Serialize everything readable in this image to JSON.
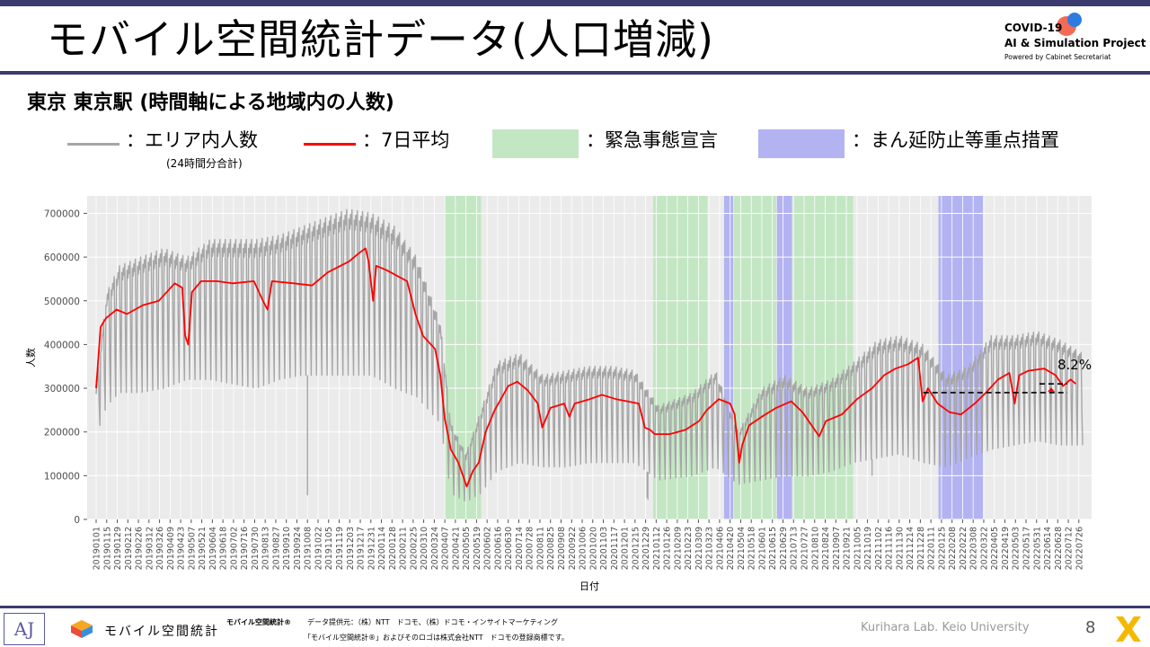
{
  "page": {
    "title": "モバイル空間統計データ(人口増減)",
    "subtitle": "東京 東京駅 (時間軸による地域内の人数)",
    "logo": {
      "line1": "COVID-19",
      "line2": "AI & Simulation Project",
      "line3": "Powered by Cabinet Secretariat"
    },
    "legend": {
      "gray_label": "：エリア内人数",
      "gray_note": "(24時間分合計)",
      "red_label": "：7日平均",
      "green_label": "：緊急事態宣言",
      "blue_label": "：まん延防止等重点措置"
    },
    "footer": {
      "aj": "AJ",
      "mobile": "モバイル空間統計",
      "brand_small": "モバイル空間統計®",
      "provider": "データ提供元：（株）NTT　ドコモ、（株）ドコモ・インサイトマーケティング",
      "trademark": "「モバイル空間統計®」およびそのロゴは株式会社NTT　ドコモの登録商標です。",
      "lab": "Kurihara Lab. Keio University",
      "page_number": "8"
    },
    "colors": {
      "accent": "#3b3b6e",
      "gray_series": "#a6a6a6",
      "red_series": "#ff0000",
      "green_band": "#c3e6c3",
      "blue_band": "#b3b3f2",
      "plot_bg": "#ebebeb"
    }
  },
  "chart_data": {
    "type": "line",
    "xlabel": "日付",
    "ylabel": "人数",
    "ylim": [
      0,
      740000
    ],
    "yticks": [
      0,
      100000,
      200000,
      300000,
      400000,
      500000,
      600000,
      700000
    ],
    "ytick_labels": [
      "0",
      "100000",
      "200000",
      "300000",
      "400000",
      "500000",
      "600000",
      "700000"
    ],
    "x_start": "2019-01-01",
    "x_end": "2022-07-31",
    "x_tick_labels": [
      "20190101",
      "20190115",
      "20190129",
      "20190212",
      "20190226",
      "20190312",
      "20190326",
      "20190409",
      "20190423",
      "20190507",
      "20190521",
      "20190604",
      "20190618",
      "20190702",
      "20190716",
      "20190730",
      "20190813",
      "20190827",
      "20190910",
      "20190924",
      "20191008",
      "20191022",
      "20191105",
      "20191119",
      "20191203",
      "20191217",
      "20191231",
      "20200114",
      "20200128",
      "20200211",
      "20200225",
      "20200310",
      "20200324",
      "20200407",
      "20200421",
      "20200505",
      "20200519",
      "20200602",
      "20200616",
      "20200630",
      "20200714",
      "20200728",
      "20200811",
      "20200825",
      "20200908",
      "20200922",
      "20201006",
      "20201020",
      "20201103",
      "20201117",
      "20201201",
      "20201215",
      "20201229",
      "20210112",
      "20210126",
      "20210209",
      "20210223",
      "20210309",
      "20210323",
      "20210406",
      "20210420",
      "20210504",
      "20210518",
      "20210601",
      "20210615",
      "20210629",
      "20210713",
      "20210727",
      "20210810",
      "20210824",
      "20210907",
      "20210921",
      "20211005",
      "20211019",
      "20211102",
      "20211116",
      "20211130",
      "20211214",
      "20211228",
      "20220111",
      "20220125",
      "20220208",
      "20220222",
      "20220308",
      "20220322",
      "20220405",
      "20220419",
      "20220503",
      "20220517",
      "20220531",
      "20220614",
      "20220628",
      "20220712",
      "20220726"
    ],
    "emergency_periods": [
      [
        "2020-04-07",
        "2020-05-25"
      ],
      [
        "2021-01-08",
        "2021-03-21"
      ],
      [
        "2021-04-25",
        "2021-06-20"
      ],
      [
        "2021-07-12",
        "2021-09-30"
      ]
    ],
    "priority_measures_periods": [
      [
        "2021-04-12",
        "2021-04-24"
      ],
      [
        "2021-06-21",
        "2021-07-11"
      ],
      [
        "2022-01-21",
        "2022-03-21"
      ]
    ],
    "seven_day_average": [
      [
        "2019-01-01",
        300000
      ],
      [
        "2019-01-07",
        440000
      ],
      [
        "2019-01-14",
        460000
      ],
      [
        "2019-01-28",
        480000
      ],
      [
        "2019-02-11",
        470000
      ],
      [
        "2019-03-04",
        490000
      ],
      [
        "2019-03-25",
        500000
      ],
      [
        "2019-04-15",
        540000
      ],
      [
        "2019-04-25",
        530000
      ],
      [
        "2019-04-29",
        420000
      ],
      [
        "2019-05-03",
        400000
      ],
      [
        "2019-05-08",
        520000
      ],
      [
        "2019-05-20",
        545000
      ],
      [
        "2019-06-10",
        545000
      ],
      [
        "2019-07-01",
        540000
      ],
      [
        "2019-07-29",
        545000
      ],
      [
        "2019-08-10",
        500000
      ],
      [
        "2019-08-16",
        480000
      ],
      [
        "2019-08-22",
        545000
      ],
      [
        "2019-09-20",
        540000
      ],
      [
        "2019-10-14",
        535000
      ],
      [
        "2019-11-04",
        565000
      ],
      [
        "2019-12-02",
        590000
      ],
      [
        "2019-12-16",
        610000
      ],
      [
        "2019-12-24",
        620000
      ],
      [
        "2019-12-28",
        590000
      ],
      [
        "2020-01-03",
        500000
      ],
      [
        "2020-01-07",
        580000
      ],
      [
        "2020-01-21",
        570000
      ],
      [
        "2020-02-17",
        545000
      ],
      [
        "2020-02-28",
        470000
      ],
      [
        "2020-03-09",
        420000
      ],
      [
        "2020-03-25",
        390000
      ],
      [
        "2020-04-01",
        330000
      ],
      [
        "2020-04-07",
        230000
      ],
      [
        "2020-04-15",
        160000
      ],
      [
        "2020-04-25",
        130000
      ],
      [
        "2020-05-01",
        100000
      ],
      [
        "2020-05-06",
        75000
      ],
      [
        "2020-05-14",
        110000
      ],
      [
        "2020-05-22",
        130000
      ],
      [
        "2020-05-31",
        200000
      ],
      [
        "2020-06-12",
        250000
      ],
      [
        "2020-06-30",
        305000
      ],
      [
        "2020-07-12",
        315000
      ],
      [
        "2020-07-26",
        295000
      ],
      [
        "2020-08-08",
        265000
      ],
      [
        "2020-08-14",
        210000
      ],
      [
        "2020-08-25",
        255000
      ],
      [
        "2020-09-12",
        265000
      ],
      [
        "2020-09-19",
        235000
      ],
      [
        "2020-09-26",
        265000
      ],
      [
        "2020-10-16",
        275000
      ],
      [
        "2020-11-01",
        285000
      ],
      [
        "2020-11-20",
        275000
      ],
      [
        "2020-12-05",
        270000
      ],
      [
        "2020-12-20",
        265000
      ],
      [
        "2020-12-28",
        210000
      ],
      [
        "2021-01-04",
        205000
      ],
      [
        "2021-01-10",
        195000
      ],
      [
        "2021-01-30",
        195000
      ],
      [
        "2021-02-20",
        205000
      ],
      [
        "2021-03-10",
        225000
      ],
      [
        "2021-03-20",
        250000
      ],
      [
        "2021-04-05",
        275000
      ],
      [
        "2021-04-20",
        265000
      ],
      [
        "2021-04-26",
        240000
      ],
      [
        "2021-05-02",
        130000
      ],
      [
        "2021-05-06",
        170000
      ],
      [
        "2021-05-15",
        215000
      ],
      [
        "2021-06-01",
        235000
      ],
      [
        "2021-06-20",
        255000
      ],
      [
        "2021-07-10",
        270000
      ],
      [
        "2021-07-25",
        245000
      ],
      [
        "2021-08-08",
        210000
      ],
      [
        "2021-08-16",
        190000
      ],
      [
        "2021-08-25",
        225000
      ],
      [
        "2021-09-15",
        240000
      ],
      [
        "2021-10-05",
        275000
      ],
      [
        "2021-10-25",
        300000
      ],
      [
        "2021-11-10",
        330000
      ],
      [
        "2021-11-25",
        345000
      ],
      [
        "2021-12-12",
        355000
      ],
      [
        "2021-12-25",
        370000
      ],
      [
        "2021-12-31",
        270000
      ],
      [
        "2022-01-07",
        300000
      ],
      [
        "2022-01-20",
        265000
      ],
      [
        "2022-02-05",
        245000
      ],
      [
        "2022-02-20",
        240000
      ],
      [
        "2022-03-10",
        265000
      ],
      [
        "2022-03-25",
        290000
      ],
      [
        "2022-04-10",
        320000
      ],
      [
        "2022-04-25",
        335000
      ],
      [
        "2022-05-02",
        265000
      ],
      [
        "2022-05-08",
        330000
      ],
      [
        "2022-05-20",
        340000
      ],
      [
        "2022-06-10",
        345000
      ],
      [
        "2022-06-25",
        330000
      ],
      [
        "2022-07-05",
        305000
      ],
      [
        "2022-07-15",
        320000
      ],
      [
        "2022-07-22",
        310000
      ]
    ],
    "area_daily_envelope": [
      [
        "2019-01-01",
        190000,
        300000
      ],
      [
        "2019-01-15",
        260000,
        520000
      ],
      [
        "2019-02-01",
        290000,
        580000
      ],
      [
        "2019-03-01",
        290000,
        600000
      ],
      [
        "2019-04-01",
        300000,
        620000
      ],
      [
        "2019-05-01",
        320000,
        600000
      ],
      [
        "2019-06-01",
        320000,
        640000
      ],
      [
        "2019-07-01",
        310000,
        640000
      ],
      [
        "2019-08-01",
        300000,
        640000
      ],
      [
        "2019-09-01",
        320000,
        650000
      ],
      [
        "2019-10-01",
        330000,
        670000
      ],
      [
        "2019-11-01",
        330000,
        690000
      ],
      [
        "2019-12-01",
        330000,
        710000
      ],
      [
        "2020-01-01",
        330000,
        700000
      ],
      [
        "2020-02-01",
        300000,
        670000
      ],
      [
        "2020-03-01",
        280000,
        600000
      ],
      [
        "2020-04-01",
        220000,
        450000
      ],
      [
        "2020-04-15",
        60000,
        220000
      ],
      [
        "2020-05-05",
        40000,
        150000
      ],
      [
        "2020-05-25",
        60000,
        250000
      ],
      [
        "2020-06-15",
        110000,
        360000
      ],
      [
        "2020-07-15",
        130000,
        380000
      ],
      [
        "2020-08-15",
        120000,
        330000
      ],
      [
        "2020-09-15",
        120000,
        340000
      ],
      [
        "2020-10-15",
        130000,
        350000
      ],
      [
        "2020-11-15",
        130000,
        350000
      ],
      [
        "2020-12-15",
        130000,
        340000
      ],
      [
        "2021-01-15",
        90000,
        260000
      ],
      [
        "2021-03-01",
        100000,
        290000
      ],
      [
        "2021-04-01",
        120000,
        340000
      ],
      [
        "2021-05-01",
        80000,
        200000
      ],
      [
        "2021-06-01",
        90000,
        300000
      ],
      [
        "2021-07-01",
        100000,
        330000
      ],
      [
        "2021-08-01",
        100000,
        300000
      ],
      [
        "2021-09-01",
        110000,
        320000
      ],
      [
        "2021-10-01",
        130000,
        360000
      ],
      [
        "2021-11-01",
        140000,
        410000
      ],
      [
        "2021-12-01",
        150000,
        420000
      ],
      [
        "2022-01-01",
        130000,
        400000
      ],
      [
        "2022-02-01",
        120000,
        330000
      ],
      [
        "2022-03-01",
        140000,
        350000
      ],
      [
        "2022-04-01",
        160000,
        420000
      ],
      [
        "2022-05-01",
        170000,
        420000
      ],
      [
        "2022-06-01",
        180000,
        430000
      ],
      [
        "2022-07-01",
        170000,
        410000
      ],
      [
        "2022-07-31",
        170000,
        380000
      ]
    ],
    "outlier_dips": [
      [
        "2019-10-08",
        55000
      ],
      [
        "2021-10-25",
        100000
      ],
      [
        "2021-01-01",
        45000
      ],
      [
        "2020-12-31",
        50000
      ]
    ],
    "baseline_value": 290000,
    "baseline_start": "2022-01-01",
    "change_annotation": "8.2%"
  }
}
